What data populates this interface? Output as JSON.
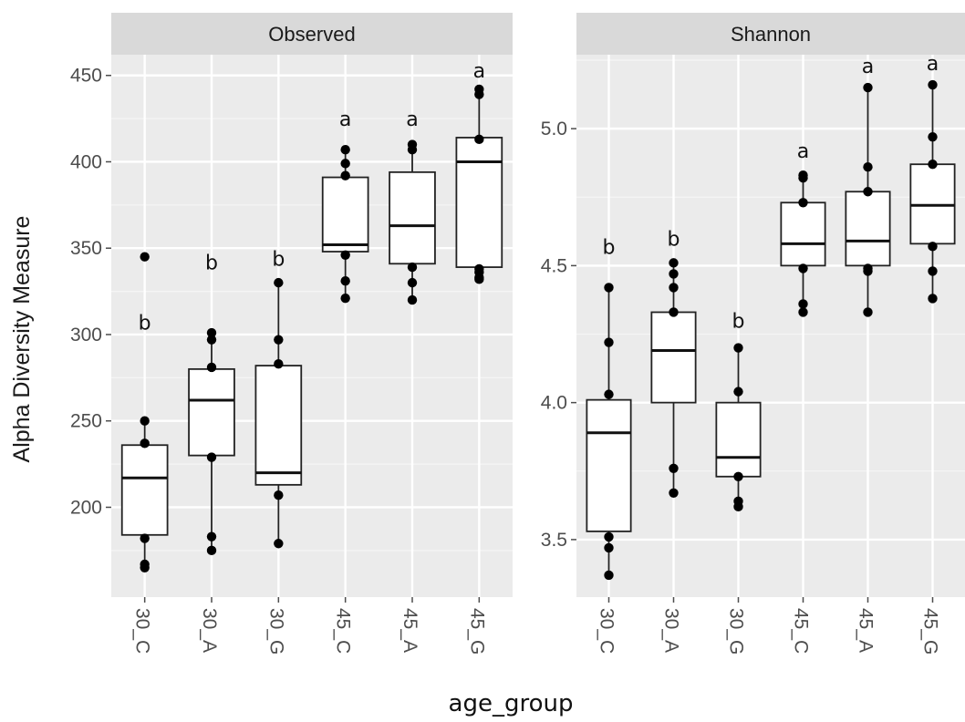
{
  "chart_data": {
    "type": "box",
    "xlabel": "age_group",
    "ylabel": "Alpha Diversity Measure",
    "grid": true,
    "categories": [
      "30_C",
      "30_A",
      "30_G",
      "45_C",
      "45_A",
      "45_G"
    ],
    "panels": [
      {
        "title": "Observed",
        "ylim": [
          148,
          462
        ],
        "yticks": [
          200,
          250,
          300,
          350,
          400,
          450
        ],
        "boxes": [
          {
            "category": "30_C",
            "q1": 184,
            "median": 217,
            "q3": 236,
            "whisker_low": 165,
            "whisker_high": 250,
            "points": [
              345,
              250,
              237,
              182,
              167,
              165
            ],
            "letter": "b",
            "letter_y": 307
          },
          {
            "category": "30_A",
            "q1": 230,
            "median": 262,
            "q3": 280,
            "whisker_low": 175,
            "whisker_high": 301,
            "points": [
              301,
              297,
              281,
              229,
              183,
              175
            ],
            "letter": "b",
            "letter_y": 342
          },
          {
            "category": "30_G",
            "q1": 213,
            "median": 220,
            "q3": 282,
            "whisker_low": 179,
            "whisker_high": 330,
            "points": [
              330,
              297,
              283,
              207,
              179
            ],
            "letter": "b",
            "letter_y": 344
          },
          {
            "category": "45_C",
            "q1": 348,
            "median": 352,
            "q3": 391,
            "whisker_low": 321,
            "whisker_high": 407,
            "points": [
              407,
              399,
              392,
              346,
              331,
              321
            ],
            "letter": "a",
            "letter_y": 425
          },
          {
            "category": "45_A",
            "q1": 341,
            "median": 363,
            "q3": 394,
            "whisker_low": 320,
            "whisker_high": 410,
            "points": [
              410,
              407,
              339,
              330,
              320
            ],
            "letter": "a",
            "letter_y": 425
          },
          {
            "category": "45_G",
            "q1": 339,
            "median": 400,
            "q3": 414,
            "whisker_low": 332,
            "whisker_high": 442,
            "points": [
              442,
              439,
              413,
              338,
              336,
              333,
              332
            ],
            "letter": "a",
            "letter_y": 453
          }
        ]
      },
      {
        "title": "Shannon",
        "ylim": [
          3.29,
          5.27
        ],
        "yticks": [
          3.5,
          4.0,
          4.5,
          5.0
        ],
        "boxes": [
          {
            "category": "30_C",
            "q1": 3.53,
            "median": 3.89,
            "q3": 4.01,
            "whisker_low": 3.37,
            "whisker_high": 4.42,
            "points": [
              4.42,
              4.22,
              4.03,
              3.51,
              3.47,
              3.37
            ],
            "letter": "b",
            "letter_y": 4.57
          },
          {
            "category": "30_A",
            "q1": 4.0,
            "median": 4.19,
            "q3": 4.33,
            "whisker_low": 3.67,
            "whisker_high": 4.51,
            "points": [
              4.51,
              4.47,
              4.42,
              4.33,
              3.76,
              3.67
            ],
            "letter": "b",
            "letter_y": 4.6
          },
          {
            "category": "30_G",
            "q1": 3.73,
            "median": 3.8,
            "q3": 4.0,
            "whisker_low": 3.62,
            "whisker_high": 4.2,
            "points": [
              4.2,
              4.04,
              3.73,
              3.64,
              3.62
            ],
            "letter": "b",
            "letter_y": 4.3
          },
          {
            "category": "45_C",
            "q1": 4.5,
            "median": 4.58,
            "q3": 4.73,
            "whisker_low": 4.33,
            "whisker_high": 4.83,
            "points": [
              4.83,
              4.82,
              4.73,
              4.49,
              4.36,
              4.33
            ],
            "letter": "a",
            "letter_y": 4.92
          },
          {
            "category": "45_A",
            "q1": 4.5,
            "median": 4.59,
            "q3": 4.77,
            "whisker_low": 4.33,
            "whisker_high": 5.15,
            "points": [
              5.15,
              4.86,
              4.77,
              4.49,
              4.48,
              4.33
            ],
            "letter": "a",
            "letter_y": 5.23
          },
          {
            "category": "45_G",
            "q1": 4.58,
            "median": 4.72,
            "q3": 4.87,
            "whisker_low": 4.38,
            "whisker_high": 5.16,
            "points": [
              5.16,
              4.97,
              4.87,
              4.57,
              4.48,
              4.38
            ],
            "letter": "a",
            "letter_y": 5.24
          }
        ]
      }
    ]
  }
}
